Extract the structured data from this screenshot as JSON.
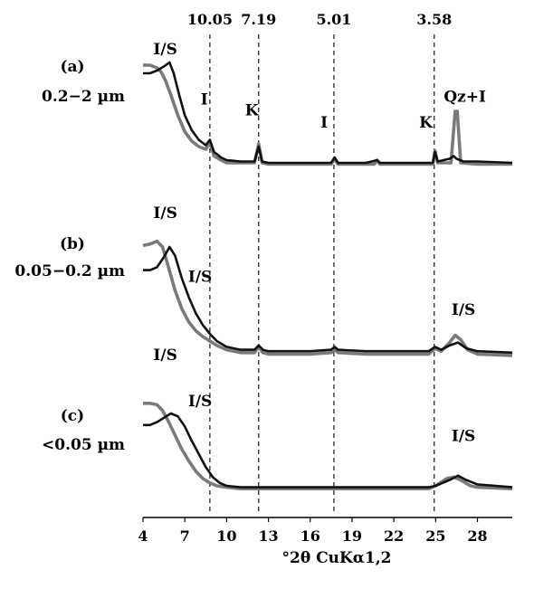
{
  "chart_data": {
    "type": "line",
    "xlabel": "°2θ CuKα1,2",
    "xlim": [
      4,
      30.5
    ],
    "x_ticks": [
      "4",
      "7",
      "10",
      "13",
      "16",
      "19",
      "22",
      "25",
      "28"
    ],
    "d_spacing_lines": [
      {
        "label": "10.05",
        "x": 8.8
      },
      {
        "label": "7.19",
        "x": 12.3
      },
      {
        "label": "5.01",
        "x": 17.7
      },
      {
        "label": "3.58",
        "x": 24.9
      }
    ],
    "colors": {
      "black_series": "#111111",
      "gray_series": "#7a7a7a"
    },
    "panels": [
      {
        "id": "(a)",
        "size": "0.2−2 µm",
        "annotations": [
          {
            "text": "I/S",
            "x": 5.6,
            "y": 0.92
          },
          {
            "text": "I",
            "x": 8.4,
            "y": 0.55
          },
          {
            "text": "K",
            "x": 11.8,
            "y": 0.47
          },
          {
            "text": "I",
            "x": 17.0,
            "y": 0.38
          },
          {
            "text": "K",
            "x": 24.3,
            "y": 0.38
          },
          {
            "text": "Qz+I",
            "x": 27.1,
            "y": 0.57
          }
        ],
        "series": [
          {
            "color": "black",
            "points": [
              [
                4,
                0.78
              ],
              [
                4.5,
                0.78
              ],
              [
                5.0,
                0.8
              ],
              [
                5.5,
                0.83
              ],
              [
                5.9,
                0.86
              ],
              [
                6.2,
                0.78
              ],
              [
                6.6,
                0.62
              ],
              [
                7.0,
                0.47
              ],
              [
                7.5,
                0.36
              ],
              [
                8.0,
                0.29
              ],
              [
                8.5,
                0.25
              ],
              [
                8.8,
                0.29
              ],
              [
                9.1,
                0.2
              ],
              [
                9.6,
                0.16
              ],
              [
                10,
                0.14
              ],
              [
                11,
                0.13
              ],
              [
                12,
                0.13
              ],
              [
                12.3,
                0.24
              ],
              [
                12.55,
                0.13
              ],
              [
                13,
                0.12
              ],
              [
                16,
                0.12
              ],
              [
                17.5,
                0.12
              ],
              [
                17.75,
                0.16
              ],
              [
                18.0,
                0.12
              ],
              [
                20,
                0.12
              ],
              [
                20.8,
                0.14
              ],
              [
                21.0,
                0.12
              ],
              [
                24.0,
                0.12
              ],
              [
                24.8,
                0.12
              ],
              [
                24.95,
                0.2
              ],
              [
                25.15,
                0.13
              ],
              [
                26,
                0.15
              ],
              [
                26.3,
                0.17
              ],
              [
                26.5,
                0.15
              ],
              [
                27,
                0.13
              ],
              [
                28,
                0.13
              ],
              [
                30.5,
                0.12
              ]
            ]
          },
          {
            "color": "gray",
            "points": [
              [
                4,
                0.84
              ],
              [
                4.5,
                0.84
              ],
              [
                5.0,
                0.82
              ],
              [
                5.3,
                0.79
              ],
              [
                5.6,
                0.73
              ],
              [
                6.0,
                0.62
              ],
              [
                6.5,
                0.47
              ],
              [
                7.0,
                0.35
              ],
              [
                7.5,
                0.28
              ],
              [
                8.0,
                0.24
              ],
              [
                8.5,
                0.22
              ],
              [
                8.8,
                0.27
              ],
              [
                9.1,
                0.17
              ],
              [
                9.6,
                0.14
              ],
              [
                10,
                0.12
              ],
              [
                11,
                0.12
              ],
              [
                12,
                0.12
              ],
              [
                12.3,
                0.26
              ],
              [
                12.55,
                0.12
              ],
              [
                13,
                0.11
              ],
              [
                16,
                0.11
              ],
              [
                17.5,
                0.11
              ],
              [
                17.75,
                0.15
              ],
              [
                18.0,
                0.11
              ],
              [
                20.6,
                0.11
              ],
              [
                20.8,
                0.14
              ],
              [
                21.0,
                0.11
              ],
              [
                24.0,
                0.11
              ],
              [
                24.8,
                0.11
              ],
              [
                24.95,
                0.21
              ],
              [
                25.15,
                0.12
              ],
              [
                26.1,
                0.12
              ],
              [
                26.4,
                0.5
              ],
              [
                26.55,
                0.5
              ],
              [
                26.8,
                0.12
              ],
              [
                28,
                0.11
              ],
              [
                30.5,
                0.11
              ]
            ]
          }
        ]
      },
      {
        "id": "(b)",
        "size": "0.05−0.2 µm",
        "annotations": [
          {
            "text": "I/S",
            "x": 5.6,
            "y": 1.0
          },
          {
            "text": "I/S",
            "x": 8.1,
            "y": 0.56
          },
          {
            "text": "I/S",
            "x": 27.0,
            "y": 0.33
          }
        ],
        "series": [
          {
            "color": "black",
            "points": [
              [
                4,
                0.64
              ],
              [
                4.5,
                0.64
              ],
              [
                5.0,
                0.66
              ],
              [
                5.5,
                0.73
              ],
              [
                5.9,
                0.8
              ],
              [
                6.3,
                0.74
              ],
              [
                6.8,
                0.58
              ],
              [
                7.3,
                0.45
              ],
              [
                7.8,
                0.34
              ],
              [
                8.3,
                0.26
              ],
              [
                8.8,
                0.2
              ],
              [
                9.3,
                0.15
              ],
              [
                10,
                0.11
              ],
              [
                11,
                0.09
              ],
              [
                12,
                0.09
              ],
              [
                12.3,
                0.12
              ],
              [
                12.6,
                0.09
              ],
              [
                13,
                0.08
              ],
              [
                16,
                0.08
              ],
              [
                17.5,
                0.09
              ],
              [
                17.75,
                0.11
              ],
              [
                18.0,
                0.09
              ],
              [
                20,
                0.08
              ],
              [
                24.5,
                0.08
              ],
              [
                24.95,
                0.11
              ],
              [
                25.4,
                0.09
              ],
              [
                26,
                0.12
              ],
              [
                26.6,
                0.14
              ],
              [
                27.2,
                0.1
              ],
              [
                28,
                0.08
              ],
              [
                30.5,
                0.07
              ]
            ]
          },
          {
            "color": "gray",
            "points": [
              [
                4,
                0.81
              ],
              [
                4.5,
                0.82
              ],
              [
                5.0,
                0.84
              ],
              [
                5.4,
                0.8
              ],
              [
                5.8,
                0.67
              ],
              [
                6.3,
                0.5
              ],
              [
                6.8,
                0.37
              ],
              [
                7.3,
                0.28
              ],
              [
                7.8,
                0.22
              ],
              [
                8.3,
                0.18
              ],
              [
                8.8,
                0.15
              ],
              [
                9.3,
                0.12
              ],
              [
                10,
                0.09
              ],
              [
                11,
                0.07
              ],
              [
                12,
                0.07
              ],
              [
                12.3,
                0.11
              ],
              [
                12.6,
                0.07
              ],
              [
                13,
                0.06
              ],
              [
                16,
                0.06
              ],
              [
                17.5,
                0.07
              ],
              [
                17.75,
                0.09
              ],
              [
                18.0,
                0.07
              ],
              [
                20,
                0.06
              ],
              [
                24.5,
                0.06
              ],
              [
                24.95,
                0.1
              ],
              [
                25.4,
                0.08
              ],
              [
                26,
                0.14
              ],
              [
                26.4,
                0.19
              ],
              [
                26.8,
                0.16
              ],
              [
                27.3,
                0.09
              ],
              [
                28,
                0.06
              ],
              [
                30.5,
                0.05
              ]
            ]
          }
        ]
      },
      {
        "id": "(c)",
        "size": "<0.05 µm",
        "annotations": [
          {
            "text": "I/S",
            "x": 5.6,
            "y": 0.92
          },
          {
            "text": "I/S",
            "x": 8.1,
            "y": 0.6
          },
          {
            "text": "I/S",
            "x": 27.0,
            "y": 0.36
          }
        ],
        "series": [
          {
            "color": "black",
            "points": [
              [
                4,
                0.47
              ],
              [
                4.5,
                0.47
              ],
              [
                5.0,
                0.49
              ],
              [
                5.5,
                0.52
              ],
              [
                6.0,
                0.55
              ],
              [
                6.5,
                0.53
              ],
              [
                7.0,
                0.46
              ],
              [
                7.5,
                0.36
              ],
              [
                8.0,
                0.27
              ],
              [
                8.5,
                0.18
              ],
              [
                9.0,
                0.11
              ],
              [
                9.5,
                0.07
              ],
              [
                10,
                0.05
              ],
              [
                11,
                0.04
              ],
              [
                13,
                0.04
              ],
              [
                20,
                0.04
              ],
              [
                24.5,
                0.04
              ],
              [
                25,
                0.05
              ],
              [
                26,
                0.09
              ],
              [
                26.6,
                0.12
              ],
              [
                27.2,
                0.09
              ],
              [
                28,
                0.06
              ],
              [
                30.5,
                0.04
              ]
            ]
          },
          {
            "color": "gray",
            "points": [
              [
                4,
                0.62
              ],
              [
                4.5,
                0.62
              ],
              [
                5.0,
                0.61
              ],
              [
                5.4,
                0.57
              ],
              [
                5.8,
                0.5
              ],
              [
                6.3,
                0.4
              ],
              [
                6.8,
                0.3
              ],
              [
                7.3,
                0.22
              ],
              [
                7.8,
                0.15
              ],
              [
                8.3,
                0.1
              ],
              [
                8.8,
                0.07
              ],
              [
                9.3,
                0.05
              ],
              [
                10,
                0.04
              ],
              [
                11,
                0.03
              ],
              [
                13,
                0.03
              ],
              [
                20,
                0.03
              ],
              [
                24.5,
                0.03
              ],
              [
                25,
                0.05
              ],
              [
                25.8,
                0.1
              ],
              [
                26.3,
                0.11
              ],
              [
                26.8,
                0.09
              ],
              [
                27.5,
                0.05
              ],
              [
                28,
                0.04
              ],
              [
                30.5,
                0.03
              ]
            ]
          }
        ]
      }
    ]
  }
}
